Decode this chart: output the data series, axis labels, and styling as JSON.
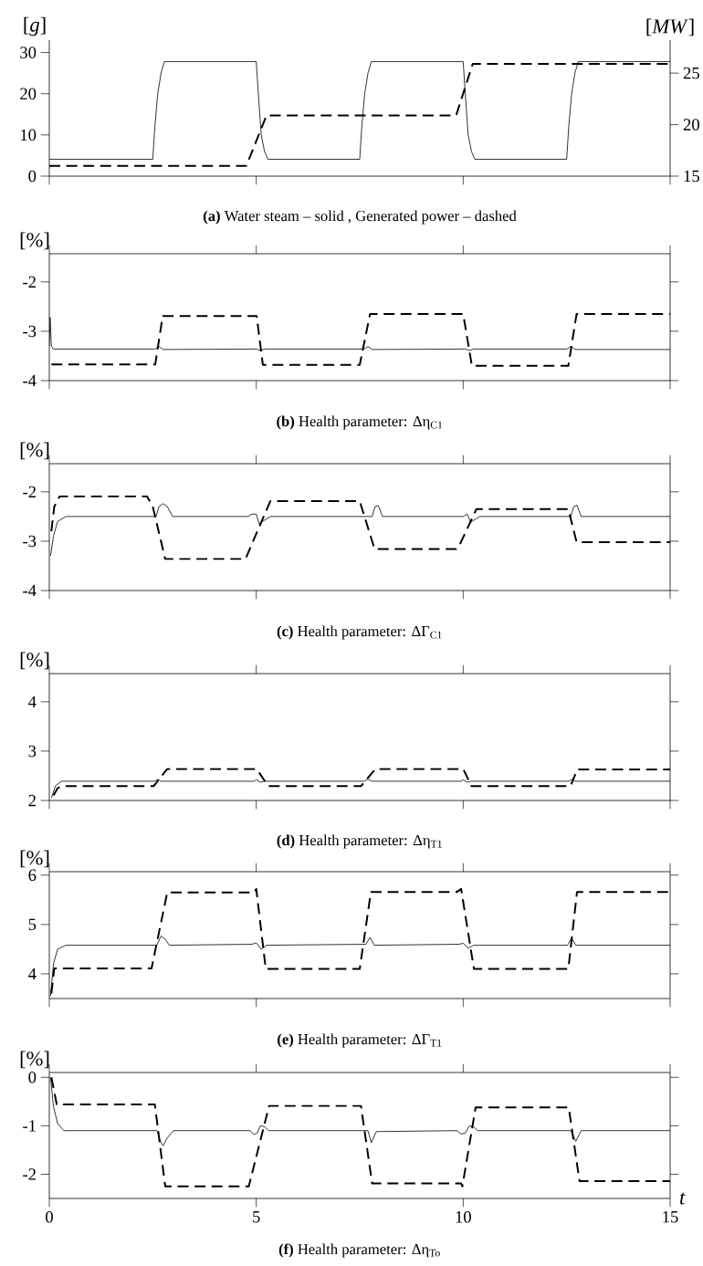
{
  "chart_data": [
    {
      "type": "line",
      "ylabel": "[*g*]",
      "y2label": "[*MW*]",
      "annotations": [
        "**(a)** Water steam – solid , Generated power – dashed"
      ],
      "xlim": [
        0,
        15
      ],
      "xticks": [
        0,
        5,
        10,
        15
      ],
      "ylim": [
        0,
        33
      ],
      "yticks": [
        0,
        10,
        20,
        30
      ],
      "y2lim": [
        15,
        28.2
      ],
      "y2ticks": [
        15,
        20,
        25
      ],
      "tick_labels": "y",
      "series": [
        {
          "color": "#000000",
          "line_style": "solid",
          "x": [
            0,
            2.5,
            2.55,
            2.62,
            2.7,
            2.78,
            5.0,
            5.05,
            5.12,
            5.2,
            5.28,
            7.5,
            7.55,
            7.62,
            7.7,
            7.78,
            10.0,
            10.05,
            10.12,
            10.2,
            10.28,
            12.5,
            12.55,
            12.62,
            12.7,
            12.78,
            15
          ],
          "values": [
            4.1,
            4.1,
            12,
            20,
            25,
            27.8,
            27.8,
            20,
            10,
            6,
            4.1,
            4.1,
            12,
            20,
            25,
            27.8,
            27.8,
            20,
            10,
            6,
            4.1,
            4.1,
            12,
            20,
            25,
            27.8,
            27.8
          ]
        },
        {
          "color": "#000000",
          "line_style": "dashed",
          "axis": "y2",
          "x": [
            0,
            4.76,
            5.25,
            9.83,
            10.23,
            15
          ],
          "values": [
            16,
            16,
            20.9,
            20.9,
            25.9,
            25.9
          ]
        }
      ]
    },
    {
      "type": "line",
      "ylabel": "[%]",
      "annotations": [
        "**(b)** Health parameter: Δη$_{C1}$"
      ],
      "xlim": [
        0,
        15
      ],
      "xticks": [
        0,
        5,
        10,
        15
      ],
      "ylim": [
        -4,
        -1.43
      ],
      "yticks": [
        -4,
        -3,
        -2
      ],
      "tick_labels": "y",
      "series": [
        {
          "color": "#000000",
          "line_style": "solid",
          "x": [
            0,
            0.02,
            0.05,
            0.1,
            2.55,
            2.65,
            2.75,
            5.0,
            5.1,
            5.2,
            7.6,
            7.7,
            7.8,
            10.05,
            10.15,
            10.25,
            12.5,
            12.6,
            12.7,
            15
          ],
          "values": [
            -3.3,
            -2.72,
            -3.3,
            -3.36,
            -3.36,
            -3.31,
            -3.37,
            -3.36,
            -3.39,
            -3.36,
            -3.36,
            -3.31,
            -3.37,
            -3.36,
            -3.39,
            -3.36,
            -3.36,
            -3.31,
            -3.37,
            -3.37
          ]
        },
        {
          "color": "#000000",
          "line_style": "dashed",
          "x": [
            0.05,
            2.56,
            2.74,
            5.01,
            5.16,
            7.5,
            7.75,
            10.0,
            10.21,
            12.54,
            12.74,
            15
          ],
          "values": [
            -3.67,
            -3.67,
            -2.69,
            -2.69,
            -3.68,
            -3.68,
            -2.65,
            -2.65,
            -3.7,
            -3.7,
            -2.65,
            -2.65
          ]
        }
      ]
    },
    {
      "type": "line",
      "ylabel": "[%]",
      "annotations": [
        "**(c)** Health parameter: ΔΓ$_{C1}$"
      ],
      "xlim": [
        0,
        15
      ],
      "xticks": [
        0,
        5,
        10,
        15
      ],
      "ylim": [
        -4,
        -1.43
      ],
      "yticks": [
        -4,
        -3,
        -2
      ],
      "tick_labels": "y",
      "series": [
        {
          "color": "#000000",
          "line_style": "solid",
          "x": [
            0.03,
            0.1,
            0.2,
            0.4,
            2.58,
            2.65,
            2.75,
            2.85,
            2.98,
            4.8,
            4.9,
            5.0,
            5.07,
            5.15,
            5.35,
            7.8,
            7.87,
            7.95,
            8.05,
            10.0,
            10.1,
            10.18,
            10.25,
            10.4,
            12.6,
            12.67,
            12.75,
            12.85,
            15
          ],
          "values": [
            -3.3,
            -2.9,
            -2.6,
            -2.5,
            -2.5,
            -2.3,
            -2.24,
            -2.3,
            -2.5,
            -2.5,
            -2.45,
            -2.45,
            -2.65,
            -2.6,
            -2.5,
            -2.5,
            -2.3,
            -2.28,
            -2.5,
            -2.5,
            -2.45,
            -2.62,
            -2.58,
            -2.5,
            -2.5,
            -2.3,
            -2.27,
            -2.5,
            -2.5
          ]
        },
        {
          "color": "#000000",
          "line_style": "dashed",
          "x": [
            0.05,
            0.12,
            0.25,
            2.36,
            2.5,
            2.8,
            4.74,
            5.34,
            7.5,
            7.86,
            9.83,
            9.9,
            10.32,
            12.54,
            12.74,
            15
          ],
          "values": [
            -2.8,
            -2.3,
            -2.09,
            -2.09,
            -2.3,
            -3.36,
            -3.36,
            -2.19,
            -2.19,
            -3.16,
            -3.16,
            -3.1,
            -2.35,
            -2.35,
            -3.02,
            -3.02
          ]
        }
      ]
    },
    {
      "type": "line",
      "ylabel": "[%]",
      "annotations": [
        "**(d)** Health parameter: Δη$_{T1}$"
      ],
      "xlim": [
        0,
        15
      ],
      "xticks": [
        0,
        5,
        10,
        15
      ],
      "ylim": [
        2,
        4.57
      ],
      "yticks": [
        2,
        3,
        4
      ],
      "tick_labels": "y",
      "series": [
        {
          "color": "#000000",
          "line_style": "solid",
          "x": [
            0.05,
            0.15,
            0.3,
            2.55,
            2.62,
            2.7,
            4.95,
            5.0,
            5.1,
            5.2,
            7.6,
            7.7,
            7.8,
            9.95,
            10.0,
            10.1,
            10.2,
            12.55,
            12.62,
            12.7,
            15
          ],
          "values": [
            2.05,
            2.3,
            2.39,
            2.39,
            2.43,
            2.39,
            2.39,
            2.42,
            2.37,
            2.39,
            2.39,
            2.43,
            2.39,
            2.39,
            2.42,
            2.37,
            2.39,
            2.39,
            2.43,
            2.39,
            2.39
          ]
        },
        {
          "color": "#000000",
          "line_style": "dashed",
          "x": [
            0.1,
            0.2,
            0.3,
            2.52,
            2.85,
            5.01,
            5.29,
            7.53,
            7.88,
            10.0,
            10.2,
            12.59,
            12.76,
            15
          ],
          "values": [
            2.1,
            2.25,
            2.29,
            2.29,
            2.64,
            2.64,
            2.29,
            2.29,
            2.64,
            2.64,
            2.29,
            2.29,
            2.63,
            2.63
          ]
        }
      ]
    },
    {
      "type": "line",
      "ylabel": "[%]",
      "annotations": [
        "**(e)** Health parameter: ΔΓ$_{T1}$"
      ],
      "xlim": [
        0,
        15
      ],
      "xticks": [
        0,
        5,
        10,
        15
      ],
      "ylim": [
        3.5,
        6.07
      ],
      "yticks": [
        4,
        5,
        6
      ],
      "tick_labels": "y",
      "series": [
        {
          "color": "#000000",
          "line_style": "solid",
          "x": [
            0.03,
            0.1,
            0.2,
            0.4,
            2.6,
            2.7,
            2.8,
            2.9,
            4.9,
            5.0,
            5.12,
            5.25,
            7.65,
            7.75,
            7.85,
            9.9,
            10.0,
            10.12,
            10.25,
            12.52,
            12.62,
            12.72,
            15
          ],
          "values": [
            3.55,
            4.2,
            4.5,
            4.58,
            4.58,
            4.77,
            4.7,
            4.58,
            4.6,
            4.63,
            4.5,
            4.58,
            4.6,
            4.74,
            4.58,
            4.6,
            4.62,
            4.52,
            4.58,
            4.58,
            4.73,
            4.58,
            4.58
          ]
        },
        {
          "color": "#000000",
          "line_style": "dashed",
          "x": [
            0.05,
            0.12,
            2.47,
            2.85,
            4.95,
            5.0,
            5.23,
            7.5,
            7.77,
            9.85,
            9.95,
            10.26,
            12.54,
            12.75,
            15
          ],
          "values": [
            3.6,
            4.11,
            4.11,
            5.65,
            5.65,
            5.72,
            4.1,
            4.1,
            5.66,
            5.66,
            5.72,
            4.1,
            4.1,
            5.66,
            5.66
          ]
        }
      ]
    },
    {
      "type": "line",
      "ylabel": "[%]",
      "xlabel": "t",
      "annotations": [
        "**(f)** Health parameter: Δη$_{To}$"
      ],
      "xlim": [
        0,
        15
      ],
      "xticks": [
        0,
        5,
        10,
        15
      ],
      "ylim": [
        -2.5,
        0.1
      ],
      "yticks": [
        -2,
        -1,
        0
      ],
      "series": [
        {
          "color": "#000000",
          "line_style": "solid",
          "x": [
            0.03,
            0.1,
            0.2,
            0.35,
            2.6,
            2.7,
            2.75,
            2.85,
            3.0,
            4.85,
            4.95,
            5.02,
            5.1,
            5.2,
            5.3,
            7.7,
            7.78,
            7.9,
            9.85,
            9.95,
            10.05,
            10.15,
            10.25,
            10.35,
            12.6,
            12.72,
            12.85,
            15
          ],
          "values": [
            0,
            -0.6,
            -0.95,
            -1.1,
            -1.1,
            -1.35,
            -1.41,
            -1.25,
            -1.1,
            -1.1,
            -1.18,
            -1.15,
            -1.0,
            -1.02,
            -1.1,
            -1.1,
            -1.35,
            -1.12,
            -1.1,
            -1.17,
            -1.15,
            -1.0,
            -1.02,
            -1.1,
            -1.1,
            -1.32,
            -1.1,
            -1.1
          ]
        },
        {
          "color": "#000000",
          "line_style": "dashed",
          "x": [
            0.05,
            0.18,
            2.55,
            2.8,
            4.82,
            5.31,
            7.53,
            7.8,
            9.95,
            9.98,
            10.3,
            12.55,
            12.81,
            15
          ],
          "values": [
            0,
            -0.56,
            -0.56,
            -2.25,
            -2.25,
            -0.59,
            -0.59,
            -2.19,
            -2.19,
            -2.25,
            -0.62,
            -0.62,
            -2.14,
            -2.14
          ]
        }
      ]
    }
  ]
}
